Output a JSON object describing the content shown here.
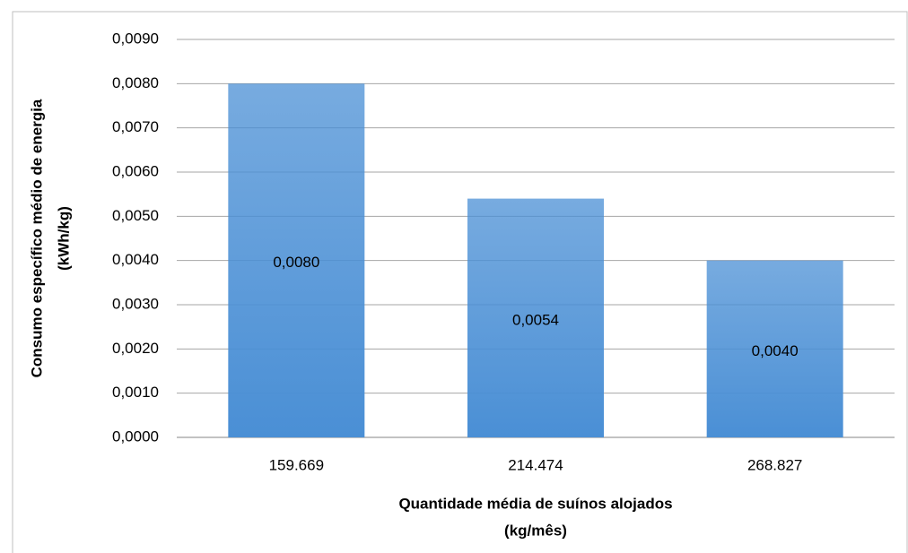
{
  "chart_data": {
    "type": "bar",
    "xlabel": [
      "Quantidade média de suínos alojados",
      "(kg/mês)"
    ],
    "ylabel": [
      "Consumo específico médio de energia",
      "(kWh/kg)"
    ],
    "categories": [
      "159.669",
      "214.474",
      "268.827"
    ],
    "values": [
      0.008,
      0.0054,
      0.004
    ],
    "value_labels": [
      "0,0080",
      "0,0054",
      "0,0040"
    ],
    "color": "#4a8fd5",
    "ylim": [
      0,
      0.009
    ],
    "yticks": [
      {
        "value": 0,
        "label": "0,0000"
      },
      {
        "value": 0.001,
        "label": "0,0010"
      },
      {
        "value": 0.002,
        "label": "0,0020"
      },
      {
        "value": 0.003,
        "label": "0,0030"
      },
      {
        "value": 0.004,
        "label": "0,0040"
      },
      {
        "value": 0.005,
        "label": "0,0050"
      },
      {
        "value": 0.006,
        "label": "0,0060"
      },
      {
        "value": 0.007,
        "label": "0,0070"
      },
      {
        "value": 0.008,
        "label": "0,0080"
      },
      {
        "value": 0.009,
        "label": "0,0090"
      }
    ],
    "grid": true
  }
}
